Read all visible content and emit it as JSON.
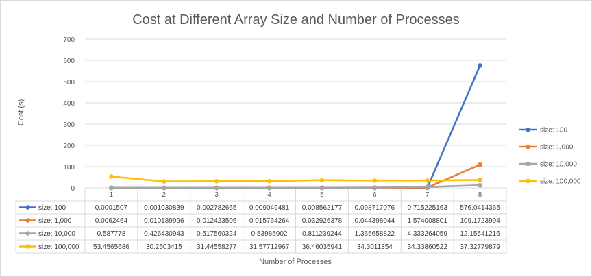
{
  "chart_data": {
    "type": "line",
    "title": "Cost at Different Array Size and Number of Processes",
    "xlabel": "Number  of Processes",
    "ylabel": "Cost (s)",
    "categories": [
      "1",
      "2",
      "3",
      "4",
      "5",
      "6",
      "7",
      "8"
    ],
    "ylim": [
      0,
      700
    ],
    "yticks": [
      "0",
      "100",
      "200",
      "300",
      "400",
      "500",
      "600",
      "700"
    ],
    "grid": true,
    "legend_position": "right",
    "series": [
      {
        "name": "size: 100",
        "color": "#4472c4",
        "values": [
          0.0001507,
          0.001030839,
          0.002782665,
          0.009049481,
          0.008562177,
          0.098717076,
          0.715225163,
          576.0414365
        ],
        "labels": [
          "0.0001507",
          "0.001030839",
          "0.002782665",
          "0.009049481",
          "0.008562177",
          "0.098717076",
          "0.715225163",
          "576.0414365"
        ]
      },
      {
        "name": "size: 1,000",
        "color": "#ed7d31",
        "values": [
          0.0062464,
          0.010189996,
          0.012423506,
          0.015764264,
          0.032926378,
          0.044398044,
          1.574008801,
          109.1723994
        ],
        "labels": [
          "0.0062464",
          "0.010189996",
          "0.012423506",
          "0.015764264",
          "0.032926378",
          "0.044398044",
          "1.574008801",
          "109.1723994"
        ]
      },
      {
        "name": "size: 10,000",
        "color": "#a5a5a5",
        "values": [
          0.587778,
          0.426430943,
          0.517560324,
          0.53985902,
          0.811239244,
          1.365658822,
          4.333264059,
          12.15541216
        ],
        "labels": [
          "0.587778",
          "0.426430943",
          "0.517560324",
          "0.53985902",
          "0.811239244",
          "1.365658822",
          "4.333264059",
          "12.15541216"
        ]
      },
      {
        "name": "size: 100,000",
        "color": "#ffc000",
        "values": [
          53.4565686,
          30.2503415,
          31.44558277,
          31.57712967,
          36.46035941,
          34.3011354,
          34.33860522,
          37.32779879
        ],
        "labels": [
          "53.4565686",
          "30.2503415",
          "31.44558277",
          "31.57712967",
          "36.46035941",
          "34.3011354",
          "34.33860522",
          "37.32779879"
        ]
      }
    ]
  }
}
